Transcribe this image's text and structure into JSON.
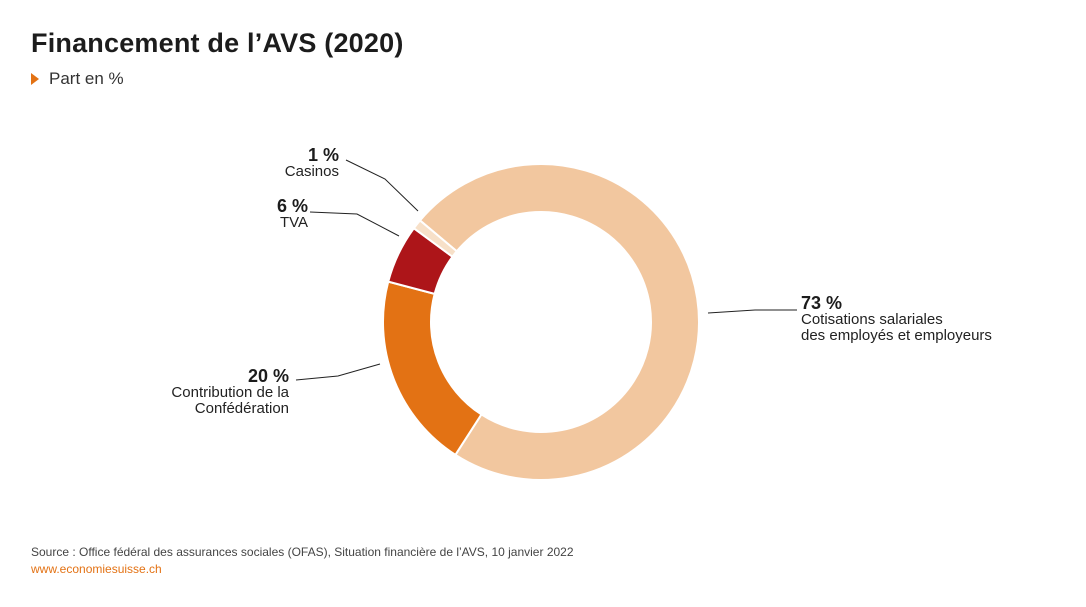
{
  "header": {
    "title": "Financement de l’AVS (2020)",
    "subtitle": "Part en %"
  },
  "chart_data": {
    "type": "pie",
    "donut": true,
    "title": "Financement de l’AVS (2020)",
    "subtitle": "Part en %",
    "slices": [
      {
        "label": "Cotisations salariales des employés et employeurs",
        "value": 73,
        "value_label": "73 %",
        "color": "#f2c79f"
      },
      {
        "label": "Contribution de la Confédération",
        "value": 20,
        "value_label": "20 %",
        "color": "#e37214"
      },
      {
        "label": "TVA",
        "value": 6,
        "value_label": "6 %",
        "color": "#ad1519"
      },
      {
        "label": "Casinos",
        "value": 1,
        "value_label": "1 %",
        "color": "#f7e0c8"
      }
    ]
  },
  "labels": {
    "cotisations_pct": "73 %",
    "cotisations_line1": "Cotisations salariales",
    "cotisations_line2": "des employés et employeurs",
    "confederation_pct": "20 %",
    "confederation_line1": "Contribution de la",
    "confederation_line2": "Confédération",
    "tva_pct": "6 %",
    "tva_text": "TVA",
    "casinos_pct": "1 %",
    "casinos_text": "Casinos"
  },
  "footer": {
    "source": "Source : Office fédéral des assurances sociales (OFAS), Situation financière de l’AVS, 10 janvier 2022",
    "url": "www.economiesuisse.ch"
  }
}
